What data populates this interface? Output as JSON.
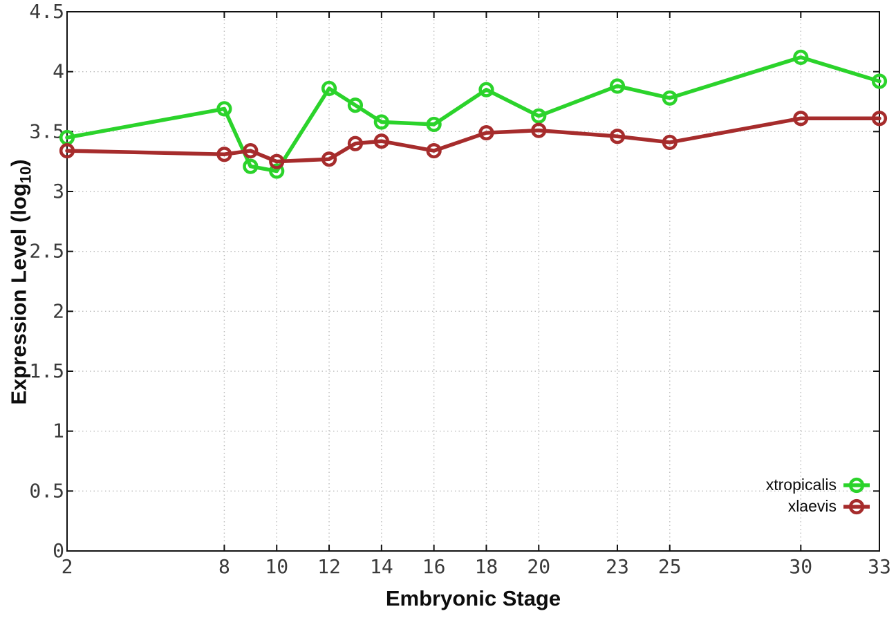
{
  "figure": {
    "background": "#ffffff",
    "border_color": "#111111",
    "grid_color": "#bbbbbb",
    "tick_text_color": "#3a3a3a"
  },
  "chart_data": {
    "type": "line",
    "title": "",
    "xlabel": "Embryonic Stage",
    "ylabel": "Expression Level (log10)",
    "ylabel_parts": {
      "main": "Expression Level (log",
      "sub": "10",
      "close": ")"
    },
    "x": [
      2,
      8,
      9,
      10,
      12,
      13,
      14,
      16,
      18,
      20,
      23,
      25,
      30,
      33
    ],
    "series": [
      {
        "name": "xtropicalis",
        "color": "#2bd32b",
        "marker": "open-circle",
        "values": [
          3.45,
          3.69,
          3.21,
          3.17,
          3.86,
          3.72,
          3.58,
          3.56,
          3.85,
          3.63,
          3.88,
          3.78,
          4.12,
          3.92
        ]
      },
      {
        "name": "xlaevis",
        "color": "#a62c2c",
        "marker": "open-circle",
        "values": [
          3.34,
          3.31,
          3.34,
          3.25,
          3.27,
          3.4,
          3.42,
          3.34,
          3.49,
          3.51,
          3.46,
          3.41,
          3.61,
          3.61
        ]
      }
    ],
    "xlim": [
      2,
      33
    ],
    "ylim": [
      0,
      4.5
    ],
    "xticks": [
      2,
      8,
      10,
      12,
      14,
      16,
      18,
      20,
      23,
      25,
      30,
      33
    ],
    "yticks": [
      0,
      0.5,
      1,
      1.5,
      2,
      2.5,
      3,
      3.5,
      4,
      4.5
    ],
    "ytick_labels": [
      "0",
      "0.5",
      "1",
      "1.5",
      "2",
      "2.5",
      "3",
      "3.5",
      "4",
      "4.5"
    ],
    "grid": true,
    "legend_position": "bottom-right"
  }
}
